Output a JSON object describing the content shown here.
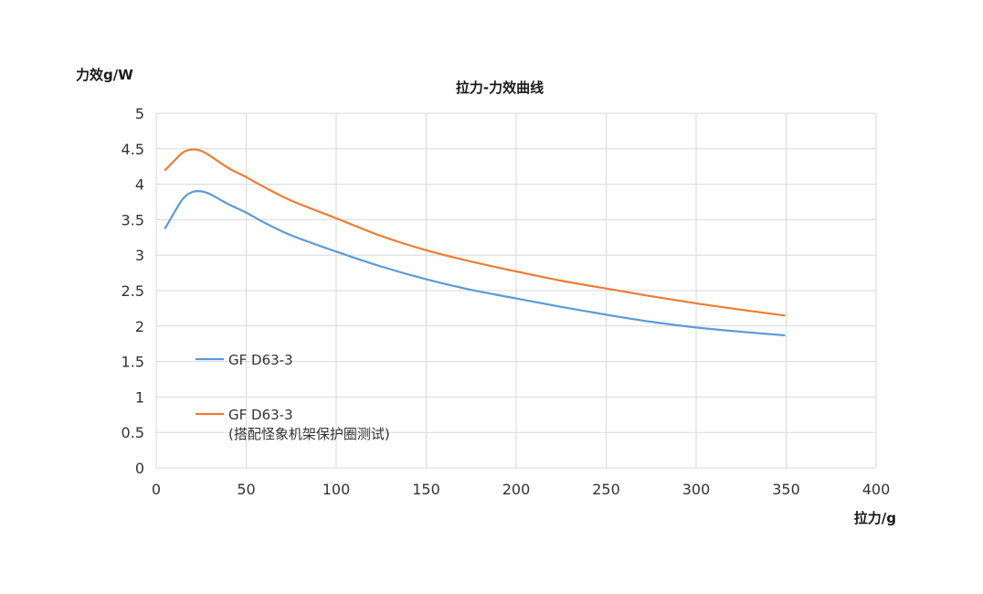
{
  "chart_data": {
    "type": "line",
    "title": "拉力-力效曲线",
    "xlabel": "拉力/g",
    "ylabel": "力效g/W",
    "xlim": [
      0,
      400
    ],
    "ylim": [
      0,
      5
    ],
    "x_ticks": [
      0,
      50,
      100,
      150,
      200,
      250,
      300,
      350,
      400
    ],
    "y_ticks": [
      0,
      0.5,
      1,
      1.5,
      2,
      2.5,
      3,
      3.5,
      4,
      4.5,
      5
    ],
    "grid": true,
    "legend_position": "inside-lower-left",
    "series": [
      {
        "name": "GF D63-3",
        "name_line2": "",
        "color": "#5b9bd5",
        "x": [
          5,
          10,
          15,
          20,
          25,
          30,
          40,
          50,
          60,
          75,
          100,
          125,
          150,
          175,
          200,
          225,
          250,
          275,
          300,
          325,
          349
        ],
        "y": [
          3.38,
          3.6,
          3.8,
          3.89,
          3.9,
          3.86,
          3.72,
          3.6,
          3.46,
          3.28,
          3.05,
          2.84,
          2.66,
          2.51,
          2.39,
          2.27,
          2.16,
          2.06,
          1.98,
          1.92,
          1.87
        ]
      },
      {
        "name": "GF D63-3",
        "name_line2": "(搭配怪象机架保护圈测试)",
        "color": "#ed7d31",
        "x": [
          5,
          10,
          15,
          20,
          25,
          30,
          40,
          50,
          60,
          75,
          100,
          125,
          150,
          175,
          200,
          225,
          250,
          275,
          300,
          325,
          349
        ],
        "y": [
          4.2,
          4.33,
          4.45,
          4.49,
          4.47,
          4.4,
          4.23,
          4.1,
          3.96,
          3.77,
          3.52,
          3.27,
          3.07,
          2.91,
          2.77,
          2.64,
          2.53,
          2.42,
          2.32,
          2.23,
          2.15
        ]
      }
    ]
  }
}
